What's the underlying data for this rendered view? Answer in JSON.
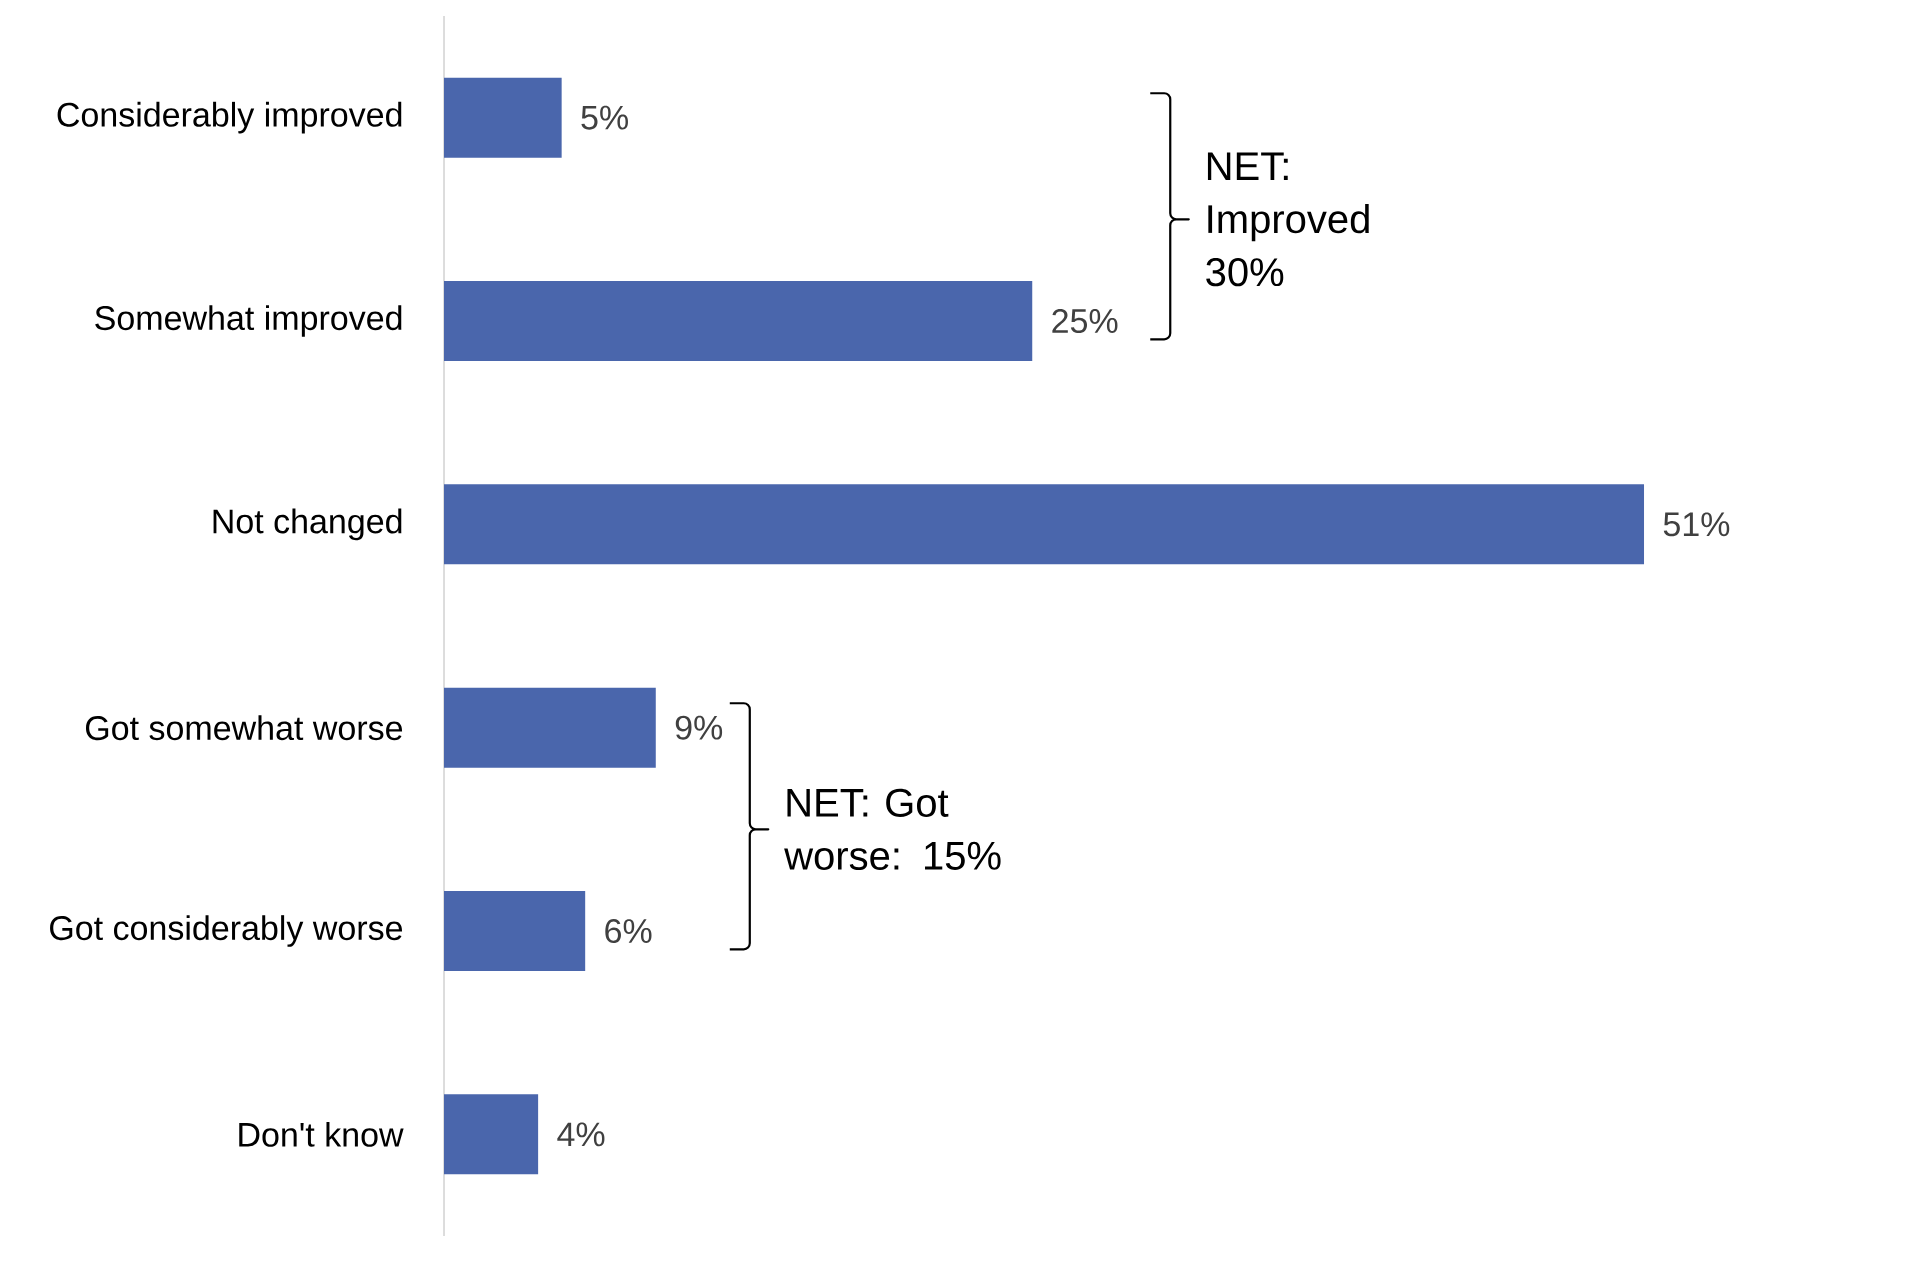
{
  "chart_data": {
    "type": "bar",
    "orientation": "horizontal",
    "categories": [
      "Considerably improved",
      "Somewhat improved",
      "Not changed",
      "Got somewhat worse",
      "Got considerably worse",
      "Don't know"
    ],
    "values": [
      5,
      25,
      51,
      9,
      6,
      4
    ],
    "value_labels": [
      "5%",
      "25%",
      "51%",
      "9%",
      "6%",
      "4%"
    ],
    "color": "#4a66ac",
    "annotations": [
      "NET: Improved 30%",
      "NET: Got worse:  15%"
    ]
  }
}
